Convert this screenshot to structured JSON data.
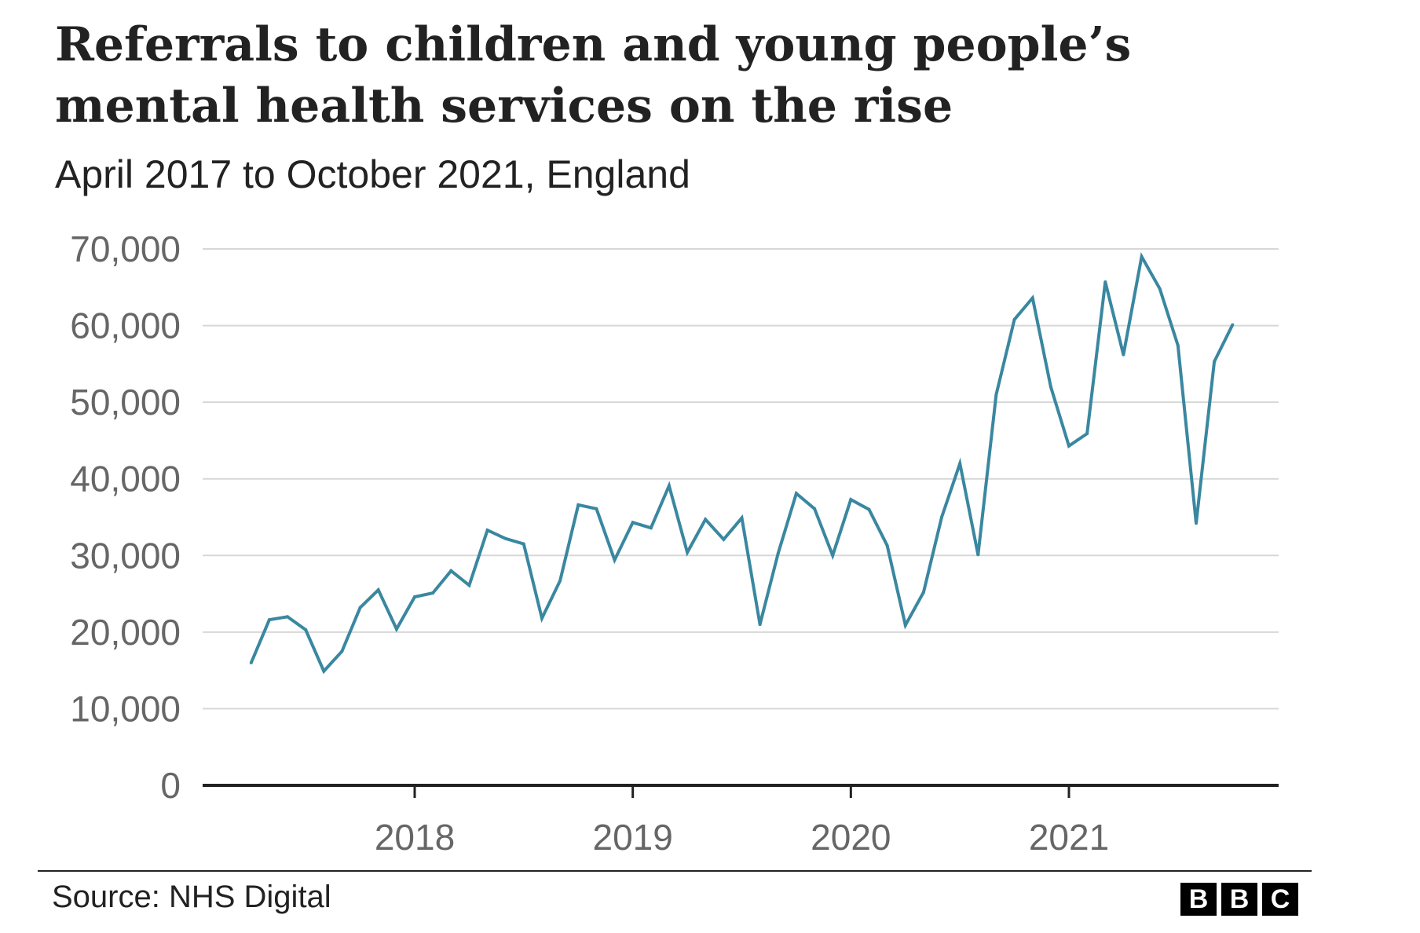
{
  "chart_data": {
    "type": "line",
    "title": "Referrals to children and young people’s mental health services on the rise",
    "subtitle": "April 2017 to October 2021, England",
    "xlabel": "",
    "ylabel": "",
    "ylim": [
      0,
      70000
    ],
    "yticks": [
      0,
      10000,
      20000,
      30000,
      40000,
      50000,
      60000,
      70000
    ],
    "ytick_labels": [
      "0",
      "10,000",
      "20,000",
      "30,000",
      "40,000",
      "50,000",
      "60,000",
      "70,000"
    ],
    "xticks": [
      2018,
      2019,
      2020,
      2021
    ],
    "xtick_labels": [
      "2018",
      "2019",
      "2020",
      "2021"
    ],
    "x_start": "April 2017",
    "x_end": "October 2021",
    "grid": true,
    "series": [
      {
        "name": "Referrals",
        "color": "#3a87a0",
        "x": [
          "2017-04",
          "2017-05",
          "2017-06",
          "2017-07",
          "2017-08",
          "2017-09",
          "2017-10",
          "2017-11",
          "2017-12",
          "2018-01",
          "2018-02",
          "2018-03",
          "2018-04",
          "2018-05",
          "2018-06",
          "2018-07",
          "2018-08",
          "2018-09",
          "2018-10",
          "2018-11",
          "2018-12",
          "2019-01",
          "2019-02",
          "2019-03",
          "2019-04",
          "2019-05",
          "2019-06",
          "2019-07",
          "2019-08",
          "2019-09",
          "2019-10",
          "2019-11",
          "2019-12",
          "2020-01",
          "2020-02",
          "2020-03",
          "2020-04",
          "2020-05",
          "2020-06",
          "2020-07",
          "2020-08",
          "2020-09",
          "2020-10",
          "2020-11",
          "2020-12",
          "2021-01",
          "2021-02",
          "2021-03",
          "2021-04",
          "2021-05",
          "2021-06",
          "2021-07",
          "2021-08",
          "2021-09",
          "2021-10"
        ],
        "values": [
          16000,
          21600,
          22000,
          20300,
          14900,
          17500,
          23200,
          25500,
          20400,
          24600,
          25100,
          28000,
          26100,
          33300,
          32200,
          31500,
          21800,
          26700,
          36600,
          36100,
          29400,
          34300,
          33600,
          39100,
          30400,
          34700,
          32100,
          34900,
          21000,
          30300,
          38100,
          36100,
          30000,
          37300,
          36000,
          31300,
          20900,
          25200,
          35000,
          42000,
          30100,
          51000,
          60800,
          63600,
          52000,
          44300,
          45900,
          65700,
          56200,
          69000,
          64800,
          57400,
          34200,
          55300,
          60100
        ]
      }
    ],
    "source": "Source: NHS Digital"
  },
  "footer": {
    "source": "Source: NHS Digital",
    "logo_letters": [
      "B",
      "B",
      "C"
    ]
  }
}
